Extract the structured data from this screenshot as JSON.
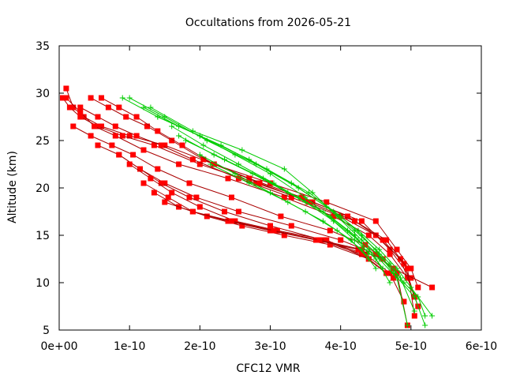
{
  "chart_data": {
    "type": "line",
    "title": "Occultations from 2026-05-21",
    "xlabel": "CFC12 VMR",
    "ylabel": "Altitude (km)",
    "xlim": [
      0,
      6e-10
    ],
    "ylim": [
      5,
      35
    ],
    "x_ticks": [
      0,
      1e-10,
      2e-10,
      3e-10,
      4e-10,
      5e-10,
      6e-10
    ],
    "x_tick_labels": [
      "0e+00",
      "1e-10",
      "2e-10",
      "3e-10",
      "4e-10",
      "5e-10",
      "6e-10"
    ],
    "y_ticks": [
      5,
      10,
      15,
      20,
      25,
      30,
      35
    ],
    "y_tick_labels": [
      "5",
      "10",
      "15",
      "20",
      "25",
      "30",
      "35"
    ],
    "grid": false,
    "legend": "none",
    "marker_colors": {
      "red_series": "#ff0000",
      "green_series": "#00cc00",
      "red_line": "#aa0000"
    },
    "series": [
      {
        "group": "red",
        "marker": "square",
        "x": [
          1e-11,
          2e-11,
          3.5e-11,
          6e-11,
          1e-10,
          1.5e-10,
          2.2e-10,
          3e-10,
          3.8e-10,
          4.5e-10,
          4.8e-10,
          5e-10,
          5.1e-10
        ],
        "y": [
          30.5,
          28.5,
          27.5,
          26.5,
          25.5,
          24.5,
          22.5,
          20.5,
          18.5,
          16.5,
          13.5,
          11.5,
          9.5
        ]
      },
      {
        "group": "red",
        "marker": "square",
        "x": [
          5e-12,
          1.5e-11,
          3e-11,
          5.5e-11,
          9e-11,
          1.35e-10,
          2e-10,
          2.8e-10,
          3.6e-10,
          4.3e-10,
          4.7e-10,
          5e-10
        ],
        "y": [
          29.5,
          28.5,
          27.5,
          26.5,
          25.5,
          24.5,
          22.5,
          20.5,
          18.5,
          16.5,
          13.5,
          10.5
        ]
      },
      {
        "group": "red",
        "marker": "square",
        "x": [
          1e-11,
          3e-11,
          5e-11,
          8e-11,
          1.2e-10,
          1.7e-10,
          2.4e-10,
          3.2e-10,
          3.9e-10,
          4.4e-10,
          4.7e-10,
          4.95e-10
        ],
        "y": [
          29.5,
          28.0,
          26.5,
          25.5,
          24.0,
          22.5,
          21.0,
          19.0,
          17.0,
          15.0,
          13.0,
          10.5
        ]
      },
      {
        "group": "red",
        "marker": "square",
        "x": [
          3e-11,
          5.5e-11,
          8e-11,
          1.1e-10,
          1.45e-10,
          1.9e-10,
          2.55e-10,
          3.3e-10,
          4e-10,
          4.5e-10,
          4.85e-10,
          5.05e-10
        ],
        "y": [
          28.5,
          27.5,
          26.5,
          25.5,
          24.5,
          23.0,
          21.0,
          19.0,
          17.0,
          15.0,
          12.5,
          8.5
        ]
      },
      {
        "group": "red",
        "marker": "square",
        "x": [
          4.5e-11,
          7e-11,
          9.5e-11,
          1.25e-10,
          1.6e-10,
          2.05e-10,
          2.7e-10,
          3.45e-10,
          4.1e-10,
          4.6e-10,
          4.9e-10,
          5.1e-10
        ],
        "y": [
          29.5,
          28.5,
          27.5,
          26.5,
          25.0,
          23.0,
          21.0,
          19.0,
          17.0,
          14.5,
          12.0,
          7.5
        ]
      },
      {
        "group": "red",
        "marker": "square",
        "x": [
          6e-11,
          8.5e-11,
          1.1e-10,
          1.4e-10,
          1.75e-10,
          2.2e-10,
          2.85e-10,
          3.55e-10,
          4.2e-10,
          4.65e-10,
          4.95e-10,
          5.05e-10
        ],
        "y": [
          29.5,
          28.5,
          27.5,
          26.0,
          24.5,
          22.5,
          20.5,
          18.5,
          16.5,
          14.5,
          11.5,
          6.5
        ]
      },
      {
        "group": "red",
        "marker": "square",
        "x": [
          2e-11,
          4.5e-11,
          7.5e-11,
          1.05e-10,
          1.4e-10,
          1.85e-10,
          2.45e-10,
          3.15e-10,
          3.85e-10,
          4.35e-10,
          4.75e-10,
          5.3e-10
        ],
        "y": [
          26.5,
          25.5,
          24.5,
          23.5,
          22.0,
          20.5,
          19.0,
          17.0,
          15.5,
          14.0,
          11.5,
          9.5
        ]
      },
      {
        "group": "red",
        "marker": "square",
        "x": [
          5.5e-11,
          8.5e-11,
          1.15e-10,
          1.5e-10,
          1.95e-10,
          2.55e-10,
          3.3e-10,
          4e-10,
          4.5e-10,
          4.8e-10,
          4.95e-10
        ],
        "y": [
          24.5,
          23.5,
          22.0,
          20.5,
          19.0,
          17.5,
          16.0,
          14.5,
          13.0,
          11.0,
          5.5
        ]
      },
      {
        "group": "red",
        "marker": "square",
        "x": [
          8.5e-11,
          1.15e-10,
          1.45e-10,
          1.85e-10,
          2.35e-10,
          3e-10,
          3.75e-10,
          4.35e-10,
          4.7e-10,
          4.9e-10
        ],
        "y": [
          23.5,
          22.0,
          20.5,
          19.0,
          17.5,
          16.0,
          14.5,
          13.0,
          11.0,
          8.0
        ]
      },
      {
        "group": "red",
        "marker": "square",
        "x": [
          1e-10,
          1.3e-10,
          1.6e-10,
          2e-10,
          2.5e-10,
          3.1e-10,
          3.8e-10,
          4.4e-10,
          4.75e-10
        ],
        "y": [
          22.5,
          21.0,
          19.5,
          18.0,
          16.5,
          15.5,
          14.5,
          12.5,
          10.5
        ]
      },
      {
        "group": "red",
        "marker": "square",
        "x": [
          1.2e-10,
          1.55e-10,
          1.9e-10,
          2.4e-10,
          3e-10,
          3.7e-10,
          4.3e-10,
          4.65e-10
        ],
        "y": [
          20.5,
          19.0,
          17.5,
          16.5,
          15.5,
          14.5,
          13.0,
          11.0
        ]
      },
      {
        "group": "red",
        "marker": "square",
        "x": [
          1.35e-10,
          1.7e-10,
          2.1e-10,
          2.6e-10,
          3.2e-10,
          3.85e-10,
          4.4e-10
        ],
        "y": [
          19.5,
          18.0,
          17.0,
          16.0,
          15.0,
          14.0,
          12.5
        ]
      },
      {
        "group": "red",
        "marker": "square",
        "x": [
          1.5e-10,
          1.9e-10,
          2.4e-10,
          3e-10,
          3.65e-10,
          4.25e-10,
          4.6e-10
        ],
        "y": [
          18.5,
          17.5,
          16.5,
          15.5,
          14.5,
          13.5,
          12.5
        ]
      },
      {
        "group": "red",
        "marker": "square",
        "x": [
          1.9e-10,
          2.45e-10,
          3.05e-10,
          3.7e-10,
          4.3e-10
        ],
        "y": [
          17.5,
          16.5,
          15.5,
          14.5,
          13.5
        ]
      },
      {
        "group": "green",
        "marker": "plus",
        "x": [
          9e-11,
          1.4e-10,
          2e-10,
          2.7e-10,
          3.3e-10,
          3.8e-10,
          4.2e-10,
          4.5e-10,
          4.7e-10,
          4.9e-10,
          5.1e-10,
          5.2e-10
        ],
        "y": [
          29.5,
          27.5,
          25.5,
          23.0,
          20.5,
          18.0,
          15.5,
          13.5,
          12.0,
          10.0,
          8.5,
          6.5
        ]
      },
      {
        "group": "green",
        "marker": "plus",
        "x": [
          1e-10,
          1.5e-10,
          2.1e-10,
          2.8e-10,
          3.4e-10,
          3.9e-10,
          4.25e-10,
          4.55e-10,
          4.8e-10,
          5e-10,
          5.3e-10
        ],
        "y": [
          29.5,
          27.5,
          25.0,
          22.5,
          20.0,
          17.5,
          15.5,
          13.5,
          11.5,
          9.5,
          6.5
        ]
      },
      {
        "group": "green",
        "marker": "plus",
        "x": [
          1.2e-10,
          1.7e-10,
          2.3e-10,
          2.95e-10,
          3.55e-10,
          4e-10,
          4.3e-10,
          4.55e-10,
          4.75e-10,
          5.05e-10,
          5.2e-10
        ],
        "y": [
          28.5,
          26.5,
          24.5,
          22.0,
          19.5,
          17.0,
          15.0,
          13.0,
          11.0,
          8.5,
          5.5
        ]
      },
      {
        "group": "green",
        "marker": "plus",
        "x": [
          1.3e-10,
          1.9e-10,
          2.6e-10,
          3.2e-10,
          3.6e-10,
          3.95e-10,
          4.3e-10,
          4.6e-10,
          4.85e-10,
          5.05e-10
        ],
        "y": [
          28.5,
          26.0,
          24.0,
          22.0,
          19.5,
          17.0,
          14.5,
          12.5,
          10.5,
          7.0
        ]
      },
      {
        "group": "green",
        "marker": "plus",
        "x": [
          1.4e-10,
          2e-10,
          2.5e-10,
          3e-10,
          3.5e-10,
          3.9e-10,
          4.25e-10,
          4.55e-10,
          4.8e-10,
          4.95e-10
        ],
        "y": [
          27.5,
          25.5,
          23.5,
          21.5,
          19.0,
          16.5,
          14.5,
          12.5,
          10.5,
          5.5
        ]
      },
      {
        "group": "green",
        "marker": "plus",
        "x": [
          1.6e-10,
          2.05e-10,
          2.55e-10,
          3.05e-10,
          3.5e-10,
          3.9e-10,
          4.2e-10,
          4.5e-10,
          4.7e-10
        ],
        "y": [
          26.5,
          24.5,
          22.5,
          20.5,
          18.5,
          16.5,
          14.5,
          12.5,
          10.0
        ]
      },
      {
        "group": "green",
        "marker": "plus",
        "x": [
          1.7e-10,
          2.2e-10,
          2.75e-10,
          3.25e-10,
          3.75e-10,
          4.1e-10,
          4.4e-10,
          4.6e-10
        ],
        "y": [
          25.5,
          23.5,
          21.5,
          19.5,
          17.5,
          15.5,
          13.5,
          11.5
        ]
      },
      {
        "group": "green",
        "marker": "plus",
        "x": [
          1.8e-10,
          2.35e-10,
          2.9e-10,
          3.4e-10,
          3.85e-10,
          4.2e-10,
          4.4e-10
        ],
        "y": [
          25.0,
          23.0,
          21.0,
          19.0,
          17.0,
          15.0,
          13.0
        ]
      },
      {
        "group": "green",
        "marker": "plus",
        "x": [
          2e-10,
          2.5e-10,
          3e-10,
          3.5e-10,
          3.95e-10,
          4.3e-10,
          4.5e-10
        ],
        "y": [
          23.5,
          21.5,
          19.5,
          17.5,
          15.5,
          13.5,
          11.5
        ]
      },
      {
        "group": "green",
        "marker": "plus",
        "x": [
          2.15e-10,
          2.7e-10,
          3.25e-10,
          3.75e-10,
          4.15e-10,
          4.4e-10
        ],
        "y": [
          22.5,
          20.5,
          18.5,
          16.5,
          14.5,
          12.5
        ]
      }
    ]
  }
}
